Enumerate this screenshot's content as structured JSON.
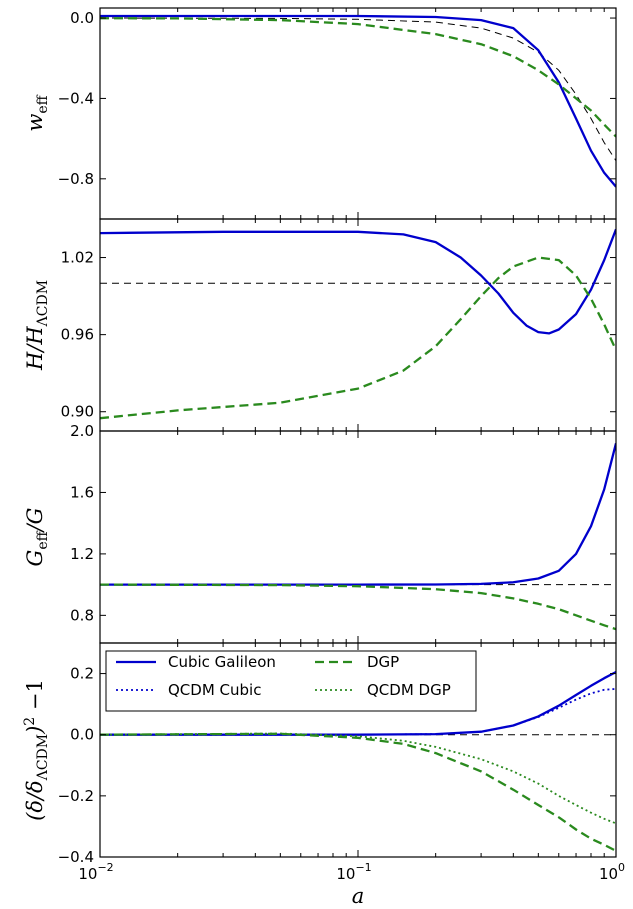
{
  "chart_data": [
    {
      "type": "line",
      "id": "weff",
      "ylabel": "w_eff",
      "ylabel_main": "w",
      "ylabel_sub": "eff",
      "xscale": "log",
      "xlim": [
        0.01,
        1
      ],
      "ylim": [
        -1.0,
        0.05
      ],
      "yticks": [
        0.0,
        -0.4,
        -0.8
      ],
      "ytick_labels": [
        "0.0",
        "−0.4",
        "−0.8"
      ],
      "reference_line": [
        {
          "x": 0.01,
          "y": 0.0
        },
        {
          "x": 0.05,
          "y": -0.002
        },
        {
          "x": 0.1,
          "y": -0.006
        },
        {
          "x": 0.2,
          "y": -0.02
        },
        {
          "x": 0.3,
          "y": -0.05
        },
        {
          "x": 0.4,
          "y": -0.1
        },
        {
          "x": 0.5,
          "y": -0.17
        },
        {
          "x": 0.6,
          "y": -0.26
        },
        {
          "x": 0.7,
          "y": -0.38
        },
        {
          "x": 0.8,
          "y": -0.5
        },
        {
          "x": 0.9,
          "y": -0.62
        },
        {
          "x": 1.0,
          "y": -0.71
        }
      ],
      "series": [
        {
          "name": "Cubic Galileon",
          "color": "#0000cc",
          "style": "solid",
          "points": [
            {
              "x": 0.01,
              "y": 0.01
            },
            {
              "x": 0.05,
              "y": 0.01
            },
            {
              "x": 0.1,
              "y": 0.01
            },
            {
              "x": 0.2,
              "y": 0.005
            },
            {
              "x": 0.3,
              "y": -0.01
            },
            {
              "x": 0.4,
              "y": -0.05
            },
            {
              "x": 0.5,
              "y": -0.16
            },
            {
              "x": 0.6,
              "y": -0.32
            },
            {
              "x": 0.7,
              "y": -0.5
            },
            {
              "x": 0.8,
              "y": -0.66
            },
            {
              "x": 0.9,
              "y": -0.77
            },
            {
              "x": 1.0,
              "y": -0.84
            }
          ]
        },
        {
          "name": "DGP",
          "color": "#2a8a1e",
          "style": "dashed",
          "points": [
            {
              "x": 0.01,
              "y": -0.001
            },
            {
              "x": 0.02,
              "y": -0.002
            },
            {
              "x": 0.05,
              "y": -0.01
            },
            {
              "x": 0.1,
              "y": -0.03
            },
            {
              "x": 0.2,
              "y": -0.08
            },
            {
              "x": 0.3,
              "y": -0.13
            },
            {
              "x": 0.4,
              "y": -0.19
            },
            {
              "x": 0.5,
              "y": -0.26
            },
            {
              "x": 0.6,
              "y": -0.33
            },
            {
              "x": 0.7,
              "y": -0.4
            },
            {
              "x": 0.8,
              "y": -0.46
            },
            {
              "x": 0.9,
              "y": -0.53
            },
            {
              "x": 1.0,
              "y": -0.59
            }
          ]
        }
      ]
    },
    {
      "type": "line",
      "id": "hratio",
      "ylabel": "H/H_ΛCDM",
      "ylabel_main": "H/H",
      "ylabel_sub": "ΛCDM",
      "xscale": "log",
      "xlim": [
        0.01,
        1
      ],
      "ylim": [
        0.885,
        1.05
      ],
      "yticks": [
        1.02,
        0.96,
        0.9
      ],
      "ytick_labels": [
        "1.02",
        "0.96",
        "0.90"
      ],
      "reference_y": 1.0,
      "series": [
        {
          "name": "Cubic Galileon",
          "color": "#0000cc",
          "style": "solid",
          "points": [
            {
              "x": 0.01,
              "y": 1.039
            },
            {
              "x": 0.03,
              "y": 1.04
            },
            {
              "x": 0.1,
              "y": 1.04
            },
            {
              "x": 0.15,
              "y": 1.038
            },
            {
              "x": 0.2,
              "y": 1.032
            },
            {
              "x": 0.25,
              "y": 1.02
            },
            {
              "x": 0.3,
              "y": 1.006
            },
            {
              "x": 0.35,
              "y": 0.992
            },
            {
              "x": 0.4,
              "y": 0.977
            },
            {
              "x": 0.45,
              "y": 0.967
            },
            {
              "x": 0.5,
              "y": 0.962
            },
            {
              "x": 0.55,
              "y": 0.961
            },
            {
              "x": 0.6,
              "y": 0.964
            },
            {
              "x": 0.7,
              "y": 0.976
            },
            {
              "x": 0.8,
              "y": 0.995
            },
            {
              "x": 0.9,
              "y": 1.018
            },
            {
              "x": 1.0,
              "y": 1.042
            }
          ]
        },
        {
          "name": "DGP",
          "color": "#2a8a1e",
          "style": "dashed",
          "points": [
            {
              "x": 0.01,
              "y": 0.895
            },
            {
              "x": 0.02,
              "y": 0.901
            },
            {
              "x": 0.05,
              "y": 0.907
            },
            {
              "x": 0.1,
              "y": 0.918
            },
            {
              "x": 0.15,
              "y": 0.932
            },
            {
              "x": 0.2,
              "y": 0.951
            },
            {
              "x": 0.25,
              "y": 0.972
            },
            {
              "x": 0.3,
              "y": 0.99
            },
            {
              "x": 0.35,
              "y": 1.004
            },
            {
              "x": 0.4,
              "y": 1.013
            },
            {
              "x": 0.5,
              "y": 1.02
            },
            {
              "x": 0.6,
              "y": 1.018
            },
            {
              "x": 0.7,
              "y": 1.006
            },
            {
              "x": 0.8,
              "y": 0.988
            },
            {
              "x": 0.9,
              "y": 0.968
            },
            {
              "x": 1.0,
              "y": 0.948
            }
          ]
        }
      ]
    },
    {
      "type": "line",
      "id": "gratio",
      "ylabel": "G_eff/G",
      "ylabel_main": "G",
      "ylabel_sub": "eff",
      "ylabel_tail": "/G",
      "xscale": "log",
      "xlim": [
        0.01,
        1
      ],
      "ylim": [
        0.62,
        2.0
      ],
      "yticks": [
        2.0,
        1.6,
        1.2,
        0.8
      ],
      "ytick_labels": [
        "2.0",
        "1.6",
        "1.2",
        "0.8"
      ],
      "reference_y": 1.0,
      "series": [
        {
          "name": "Cubic Galileon",
          "color": "#0000cc",
          "style": "solid",
          "points": [
            {
              "x": 0.01,
              "y": 1.0
            },
            {
              "x": 0.1,
              "y": 1.0
            },
            {
              "x": 0.2,
              "y": 1.001
            },
            {
              "x": 0.3,
              "y": 1.005
            },
            {
              "x": 0.4,
              "y": 1.015
            },
            {
              "x": 0.5,
              "y": 1.04
            },
            {
              "x": 0.6,
              "y": 1.09
            },
            {
              "x": 0.7,
              "y": 1.2
            },
            {
              "x": 0.8,
              "y": 1.38
            },
            {
              "x": 0.9,
              "y": 1.62
            },
            {
              "x": 1.0,
              "y": 1.92
            }
          ]
        },
        {
          "name": "DGP",
          "color": "#2a8a1e",
          "style": "dashed",
          "points": [
            {
              "x": 0.01,
              "y": 1.0
            },
            {
              "x": 0.05,
              "y": 0.997
            },
            {
              "x": 0.1,
              "y": 0.99
            },
            {
              "x": 0.2,
              "y": 0.97
            },
            {
              "x": 0.3,
              "y": 0.945
            },
            {
              "x": 0.4,
              "y": 0.91
            },
            {
              "x": 0.5,
              "y": 0.875
            },
            {
              "x": 0.6,
              "y": 0.84
            },
            {
              "x": 0.7,
              "y": 0.8
            },
            {
              "x": 0.8,
              "y": 0.765
            },
            {
              "x": 0.9,
              "y": 0.735
            },
            {
              "x": 1.0,
              "y": 0.71
            }
          ]
        }
      ]
    },
    {
      "type": "line",
      "id": "growth",
      "ylabel": "(δ/δ_ΛCDM)^2 − 1",
      "ylabel_main": "(δ/δ",
      "ylabel_sub": "ΛCDM",
      "ylabel_tail": ")",
      "ylabel_sup": "2",
      "ylabel_end": " −1",
      "xlabel": "a",
      "xscale": "log",
      "xlim": [
        0.01,
        1
      ],
      "ylim": [
        -0.4,
        0.3
      ],
      "yticks": [
        0.2,
        0.0,
        -0.2,
        -0.4
      ],
      "ytick_labels": [
        "0.2",
        "0.0",
        "−0.2",
        "−0.4"
      ],
      "xticks": [
        0.01,
        0.1,
        1
      ],
      "xtick_labels": [
        {
          "base": "10",
          "exp": "−2"
        },
        {
          "base": "10",
          "exp": "−1"
        },
        {
          "base": "10",
          "exp": "0"
        }
      ],
      "reference_y": 0.0,
      "legend": {
        "placement": "top-left",
        "entries": [
          {
            "label": "Cubic Galileon",
            "color": "#0000cc",
            "style": "solid"
          },
          {
            "label": "DGP",
            "color": "#2a8a1e",
            "style": "dashed"
          },
          {
            "label": "QCDM Cubic",
            "color": "#0000cc",
            "style": "dotted"
          },
          {
            "label": "QCDM DGP",
            "color": "#2a8a1e",
            "style": "dotted"
          }
        ]
      },
      "series": [
        {
          "name": "Cubic Galileon",
          "color": "#0000cc",
          "style": "solid",
          "points": [
            {
              "x": 0.01,
              "y": 0.0
            },
            {
              "x": 0.1,
              "y": 0.0
            },
            {
              "x": 0.2,
              "y": 0.002
            },
            {
              "x": 0.3,
              "y": 0.01
            },
            {
              "x": 0.4,
              "y": 0.03
            },
            {
              "x": 0.5,
              "y": 0.06
            },
            {
              "x": 0.6,
              "y": 0.095
            },
            {
              "x": 0.7,
              "y": 0.13
            },
            {
              "x": 0.8,
              "y": 0.16
            },
            {
              "x": 0.9,
              "y": 0.185
            },
            {
              "x": 1.0,
              "y": 0.205
            }
          ]
        },
        {
          "name": "QCDM Cubic",
          "color": "#0000cc",
          "style": "dotted",
          "points": [
            {
              "x": 0.01,
              "y": 0.0
            },
            {
              "x": 0.1,
              "y": 0.0
            },
            {
              "x": 0.2,
              "y": 0.002
            },
            {
              "x": 0.3,
              "y": 0.01
            },
            {
              "x": 0.4,
              "y": 0.03
            },
            {
              "x": 0.5,
              "y": 0.058
            },
            {
              "x": 0.6,
              "y": 0.088
            },
            {
              "x": 0.7,
              "y": 0.115
            },
            {
              "x": 0.8,
              "y": 0.135
            },
            {
              "x": 0.9,
              "y": 0.147
            },
            {
              "x": 1.0,
              "y": 0.15
            }
          ]
        },
        {
          "name": "DGP",
          "color": "#2a8a1e",
          "style": "dashed",
          "points": [
            {
              "x": 0.01,
              "y": 0.0
            },
            {
              "x": 0.05,
              "y": 0.003
            },
            {
              "x": 0.1,
              "y": -0.01
            },
            {
              "x": 0.15,
              "y": -0.03
            },
            {
              "x": 0.2,
              "y": -0.06
            },
            {
              "x": 0.3,
              "y": -0.12
            },
            {
              "x": 0.4,
              "y": -0.18
            },
            {
              "x": 0.5,
              "y": -0.23
            },
            {
              "x": 0.6,
              "y": -0.27
            },
            {
              "x": 0.7,
              "y": -0.31
            },
            {
              "x": 0.8,
              "y": -0.34
            },
            {
              "x": 0.9,
              "y": -0.36
            },
            {
              "x": 1.0,
              "y": -0.38
            }
          ]
        },
        {
          "name": "QCDM DGP",
          "color": "#2a8a1e",
          "style": "dotted",
          "points": [
            {
              "x": 0.01,
              "y": 0.0
            },
            {
              "x": 0.05,
              "y": 0.004
            },
            {
              "x": 0.1,
              "y": -0.005
            },
            {
              "x": 0.15,
              "y": -0.02
            },
            {
              "x": 0.2,
              "y": -0.04
            },
            {
              "x": 0.3,
              "y": -0.08
            },
            {
              "x": 0.4,
              "y": -0.12
            },
            {
              "x": 0.5,
              "y": -0.16
            },
            {
              "x": 0.6,
              "y": -0.2
            },
            {
              "x": 0.7,
              "y": -0.23
            },
            {
              "x": 0.8,
              "y": -0.255
            },
            {
              "x": 0.9,
              "y": -0.275
            },
            {
              "x": 1.0,
              "y": -0.29
            }
          ]
        }
      ]
    }
  ]
}
